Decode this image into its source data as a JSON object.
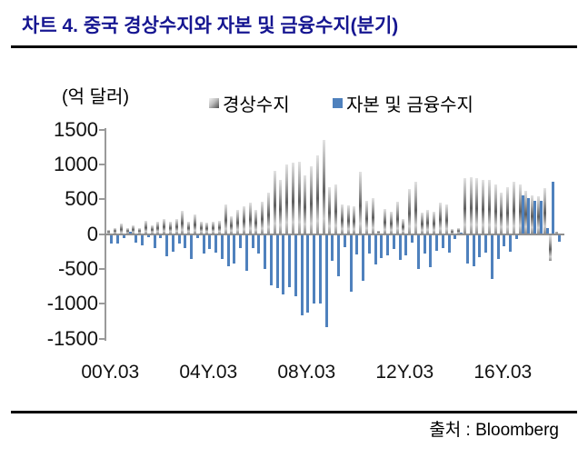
{
  "title": "차트 4. 중국 경상수지와 자본 및 금융수지(분기)",
  "unit_label": "(억 달러)",
  "source": "출처 : Bloomberg",
  "colors": {
    "title_text": "#161691",
    "bar_capital_financial": "#4f81bd",
    "bar_current_account_gradient": [
      "#e3e3e3",
      "#5f5f5f"
    ],
    "axis": "#9a9a9a",
    "rule": "#000000",
    "label_text": "#111111"
  },
  "chart_data": {
    "type": "bar",
    "title": "중국 경상수지와 자본 및 금융수지(분기)",
    "unit_label": "(억 달러)",
    "x_tick_labels": [
      "00Y.03",
      "04Y.03",
      "08Y.03",
      "12Y.03",
      "16Y.03"
    ],
    "x_tick_indices": [
      0,
      16,
      32,
      48,
      64
    ],
    "n_quarters": 74,
    "ylim": [
      -1500,
      1500
    ],
    "y_ticks": [
      1500,
      1000,
      500,
      0,
      -500,
      -1000,
      -1500
    ],
    "grid": false,
    "legend_position": "top-center",
    "series": [
      {
        "name": "경상수지",
        "style": "gray-gradient",
        "values": [
          65,
          90,
          150,
          90,
          130,
          90,
          195,
          130,
          175,
          220,
          175,
          220,
          330,
          175,
          285,
          175,
          160,
          180,
          185,
          425,
          250,
          340,
          400,
          455,
          345,
          460,
          590,
          910,
          780,
          995,
          1030,
          1040,
          845,
          975,
          1130,
          1345,
          670,
          715,
          430,
          410,
          400,
          890,
          475,
          520,
          40,
          365,
          325,
          460,
          215,
          645,
          755,
          305,
          345,
          325,
          445,
          425,
          75,
          80,
          800,
          820,
          800,
          775,
          775,
          710,
          590,
          675,
          750,
          705,
          620,
          555,
          545,
          655,
          -370,
          30
        ]
      },
      {
        "name": "자본 및 금융수지",
        "style": "solid",
        "color": "#4f81bd",
        "values": [
          -130,
          -120,
          -45,
          30,
          -110,
          -150,
          -30,
          -195,
          -45,
          -305,
          -240,
          -130,
          -195,
          -350,
          -45,
          -270,
          -200,
          -260,
          -340,
          -450,
          -410,
          -190,
          -520,
          -190,
          -265,
          -485,
          -720,
          -765,
          -855,
          -745,
          -875,
          -1155,
          -1115,
          -985,
          -985,
          -1330,
          -375,
          -590,
          -180,
          -810,
          -285,
          -655,
          -265,
          -420,
          -330,
          -290,
          -200,
          -355,
          -290,
          -115,
          -490,
          -270,
          -465,
          -225,
          -190,
          -255,
          -60,
          25,
          -410,
          -450,
          -320,
          -255,
          -630,
          -350,
          -160,
          -245,
          -60,
          555,
          510,
          480,
          475,
          85,
          750,
          -95
        ]
      }
    ]
  }
}
